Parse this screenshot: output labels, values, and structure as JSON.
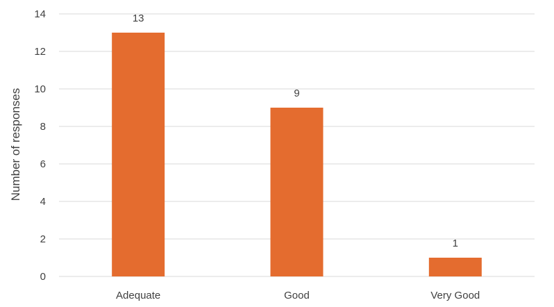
{
  "chart_data": {
    "type": "bar",
    "title": "",
    "xlabel": "",
    "ylabel": "Number of responses",
    "categories": [
      "Adequate",
      "Good",
      "Very Good"
    ],
    "values": [
      13,
      9,
      1
    ],
    "data_labels": [
      "13",
      "9",
      "1"
    ],
    "ylim": [
      0,
      14
    ],
    "yticks": [
      0,
      2,
      4,
      6,
      8,
      10,
      12,
      14
    ],
    "grid": true,
    "legend": "none",
    "bar_color": "#E46C2F",
    "grid_color": "#D9D9D9",
    "text_color": "#404040"
  }
}
